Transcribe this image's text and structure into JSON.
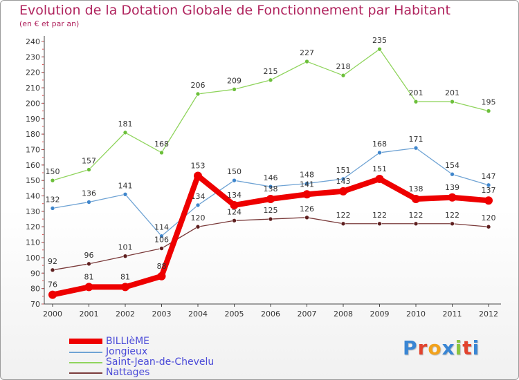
{
  "title": "Evolution de la Dotation Globale de Fonctionnement par Habitant",
  "subtitle": "(en € et par an)",
  "logo": {
    "text": "Proxiti",
    "colors": [
      "#3a86d4",
      "#e2432e",
      "#f2a21c",
      "#3a86d4",
      "#8bc53f",
      "#e2432e",
      "#3a86d4"
    ]
  },
  "chart_data": {
    "type": "line",
    "title": "Evolution de la Dotation Globale de Fonctionnement par Habitant",
    "subtitle": "(en € et par an)",
    "xlabel": "",
    "ylabel": "",
    "ylim": [
      70,
      240
    ],
    "y_ticks": [
      70,
      80,
      90,
      100,
      110,
      120,
      130,
      140,
      150,
      160,
      170,
      180,
      190,
      200,
      210,
      220,
      230,
      240
    ],
    "x": [
      "2000",
      "2001",
      "2002",
      "2003",
      "2004",
      "2005",
      "2006",
      "2007",
      "2008",
      "2009",
      "2010",
      "2011",
      "2012"
    ],
    "grid": false,
    "legend_position": "bottom-left",
    "series": [
      {
        "name": "Saint-Jean-de-Chevelu",
        "color": "#8fd45c",
        "marker": "#6cbf3a",
        "emphasis": false,
        "values": [
          150,
          157,
          181,
          168,
          206,
          209,
          215,
          227,
          218,
          235,
          201,
          201,
          195
        ]
      },
      {
        "name": "Jongieux",
        "color": "#6fa3d4",
        "marker": "#3f86cc",
        "emphasis": false,
        "values": [
          132,
          136,
          141,
          114,
          134,
          150,
          146,
          148,
          151,
          168,
          171,
          154,
          147
        ]
      },
      {
        "name": "Nattages",
        "color": "#7a3a3a",
        "marker": "#5e1f1f",
        "emphasis": false,
        "values": [
          92,
          96,
          101,
          106,
          120,
          124,
          125,
          126,
          122,
          122,
          122,
          122,
          120
        ]
      },
      {
        "name": "BILLIèME",
        "color": "#ee0000",
        "marker": "#ee0000",
        "emphasis": true,
        "values": [
          76,
          81,
          81,
          88,
          153,
          134,
          138,
          141,
          143,
          151,
          138,
          139,
          137
        ]
      }
    ]
  },
  "legend": [
    {
      "name": "BILLIèME",
      "color": "#ee0000",
      "thick": true
    },
    {
      "name": "Jongieux",
      "color": "#6fa3d4",
      "thick": false
    },
    {
      "name": "Saint-Jean-de-Chevelu",
      "color": "#8fd45c",
      "thick": false
    },
    {
      "name": "Nattages",
      "color": "#7a3a3a",
      "thick": false
    }
  ]
}
